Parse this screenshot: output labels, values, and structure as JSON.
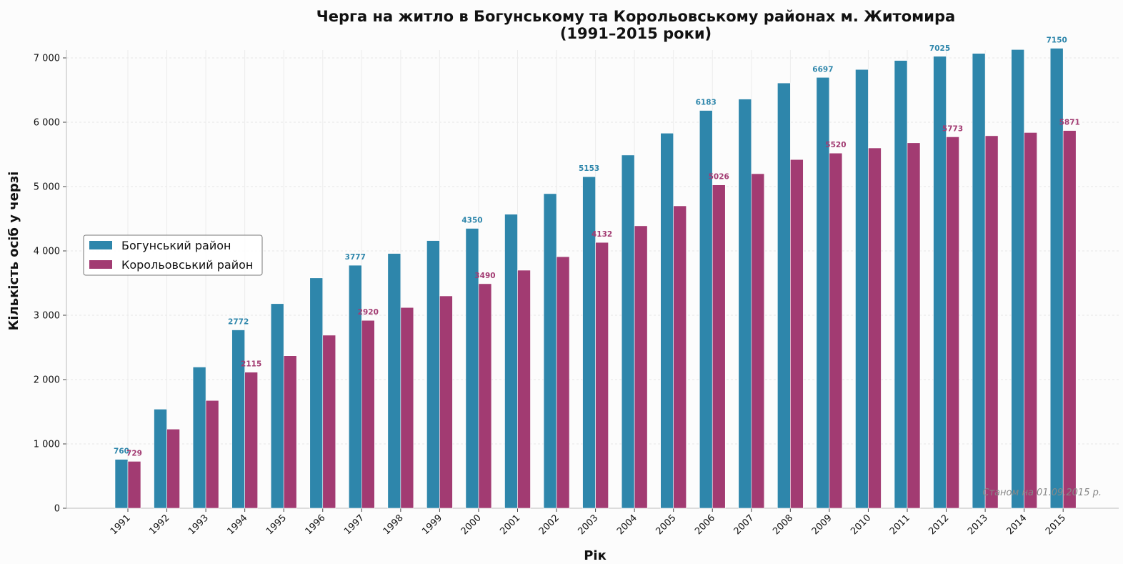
{
  "chart_data": {
    "type": "bar",
    "title_lines": [
      "Черга на житло в Богунському та Корольовському районах м. Житомира",
      "(1991–2015 роки)"
    ],
    "xlabel": "Рік",
    "ylabel": "Кількість осіб у черзі",
    "ylim": [
      0,
      7100
    ],
    "yticks": [
      0,
      1000,
      2000,
      3000,
      4000,
      5000,
      6000,
      7000
    ],
    "ytick_labels": [
      "0",
      "1 000",
      "2 000",
      "3 000",
      "4 000",
      "5 000",
      "6 000",
      "7 000"
    ],
    "grid": true,
    "legend_position": "center-left",
    "categories": [
      "1991",
      "1992",
      "1993",
      "1994",
      "1995",
      "1996",
      "1997",
      "1998",
      "1999",
      "2000",
      "2001",
      "2002",
      "2003",
      "2004",
      "2005",
      "2006",
      "2007",
      "2008",
      "2009",
      "2010",
      "2011",
      "2012",
      "2013",
      "2014",
      "2015"
    ],
    "series": [
      {
        "name": "Богунський район",
        "color": "#2e86ab",
        "values": [
          760,
          1540,
          2195,
          2772,
          3180,
          3580,
          3777,
          3960,
          4160,
          4350,
          4570,
          4890,
          5153,
          5490,
          5830,
          6183,
          6360,
          6610,
          6697,
          6820,
          6960,
          7025,
          7070,
          7130,
          7150
        ],
        "labeled_indices": [
          0,
          3,
          6,
          9,
          12,
          15,
          18,
          21,
          24
        ]
      },
      {
        "name": "Корольовський район",
        "color": "#a23b72",
        "values": [
          729,
          1230,
          1675,
          2115,
          2370,
          2690,
          2920,
          3120,
          3300,
          3490,
          3700,
          3910,
          4132,
          4390,
          4700,
          5026,
          5200,
          5420,
          5520,
          5600,
          5680,
          5773,
          5790,
          5840,
          5871
        ],
        "labeled_indices": [
          0,
          3,
          6,
          9,
          12,
          15,
          18,
          21,
          24
        ]
      }
    ],
    "note": "Станом на 01.09.2015 р."
  }
}
